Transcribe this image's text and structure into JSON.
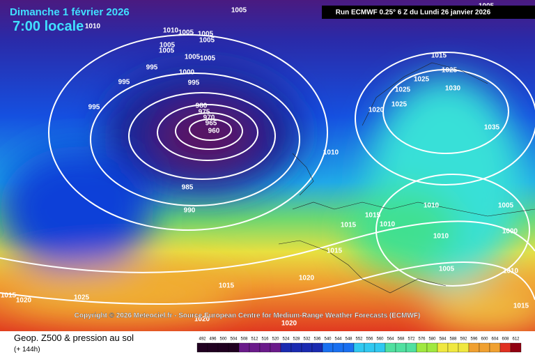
{
  "header": {
    "date": "Dimanche 1 février 2026",
    "time": "7:00 locale",
    "run": "Run ECMWF 0.25° 6 Z du Lundi 26 janvier 2026"
  },
  "isobars": [
    1005,
    1010,
    1005,
    1005,
    1005,
    1005,
    1005,
    1005,
    1005,
    1010,
    995,
    1000,
    995,
    995,
    995,
    980,
    975,
    970,
    965,
    960,
    985,
    990,
    1010,
    1020,
    1025,
    1025,
    1025,
    1025,
    1030,
    1015,
    1035,
    1005,
    1010,
    1005,
    1000,
    1015,
    1015,
    1010,
    1010,
    1005,
    1015,
    1020,
    1015,
    1025,
    1015,
    1020,
    1010,
    1015,
    1020,
    1020
  ],
  "copyright": "Copyright © 2026 Meteociel.fr - Source European Centre for Medium-Range Weather Forecasts (ECMWF)",
  "footer": {
    "title": "Geop. Z500 & pression au sol",
    "lead": "(+ 144h)"
  },
  "legend": [
    492,
    496,
    500,
    504,
    508,
    512,
    516,
    520,
    524,
    528,
    532,
    536,
    540,
    544,
    548,
    552,
    556,
    560,
    564,
    568,
    572,
    576,
    580,
    584,
    588,
    592,
    596,
    600,
    604,
    608,
    612
  ]
}
